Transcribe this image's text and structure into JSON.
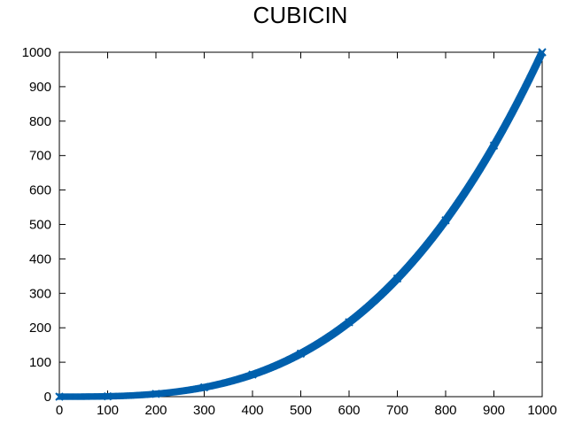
{
  "chart_data": {
    "type": "scatter",
    "title": "CUBICIN",
    "xlabel": "",
    "ylabel": "",
    "xlim": [
      0,
      1000
    ],
    "ylim": [
      0,
      1000
    ],
    "x_ticks": [
      "0",
      "100",
      "200",
      "300",
      "400",
      "500",
      "600",
      "700",
      "800",
      "900",
      "1000"
    ],
    "y_ticks": [
      "0",
      "100",
      "200",
      "300",
      "400",
      "500",
      "600",
      "700",
      "800",
      "900",
      "1000"
    ],
    "grid": false,
    "marker": "x",
    "series": [
      {
        "color": "#0060ad",
        "relation": "y = x^3 / 1000000",
        "x_range": [
          0,
          1000
        ],
        "x": [
          0,
          100,
          200,
          300,
          400,
          500,
          600,
          700,
          800,
          900,
          1000
        ],
        "y": [
          0,
          1,
          8,
          27,
          64,
          125,
          216,
          343,
          512,
          729,
          1000
        ]
      }
    ]
  }
}
